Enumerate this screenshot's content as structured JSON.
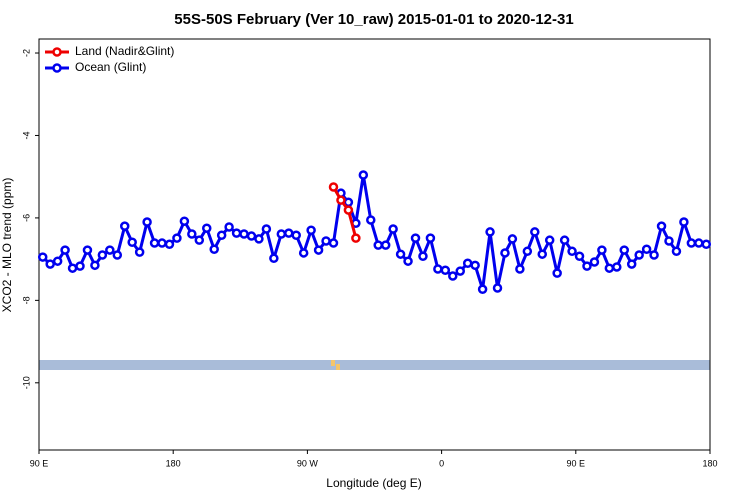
{
  "chart_data": {
    "type": "line",
    "title": "55S-50S February (Ver 10_raw)   2015-01-01 to 2020-12-31",
    "xlabel": "Longitude (deg E)",
    "ylabel": "XCO2 - MLO trend (ppm)",
    "xlim": [
      90,
      540
    ],
    "xticks": [
      {
        "value": 90,
        "label": "90 E"
      },
      {
        "value": 180,
        "label": "180"
      },
      {
        "value": 270,
        "label": "90 W"
      },
      {
        "value": 360,
        "label": "0"
      },
      {
        "value": 450,
        "label": "90 E"
      },
      {
        "value": 540,
        "label": "180"
      }
    ],
    "ylim": [
      -11.63,
      -1.66
    ],
    "yticks": [
      -2,
      -4,
      -6,
      -8,
      -10
    ],
    "legend": "upper left",
    "series": [
      {
        "name": "Land (Nadir&Glint)",
        "color": "#ee0000",
        "x": [
          287.5,
          292.5,
          297.5,
          302.5
        ],
        "values": [
          -5.25,
          -5.57,
          -5.81,
          -6.49
        ]
      },
      {
        "name": "Ocean (Glint)",
        "color": "#0000ee",
        "x": [
          92.5,
          97.5,
          102.5,
          107.5,
          112.5,
          117.5,
          122.5,
          127.5,
          132.5,
          137.5,
          142.5,
          147.5,
          152.5,
          157.5,
          162.5,
          167.5,
          172.5,
          177.5,
          182.5,
          187.5,
          192.5,
          197.5,
          202.5,
          207.5,
          212.5,
          217.5,
          222.5,
          227.5,
          232.5,
          237.5,
          242.5,
          247.5,
          252.5,
          257.5,
          262.5,
          267.5,
          272.5,
          277.5,
          282.5,
          287.5,
          292.5,
          297.5,
          302.5,
          307.5,
          312.5,
          317.5,
          322.5,
          327.5,
          332.5,
          337.5,
          342.5,
          347.5,
          352.5,
          357.5,
          362.5,
          367.5,
          372.5,
          377.5,
          382.5,
          387.5,
          392.5,
          397.5,
          402.5,
          407.5,
          412.5,
          417.5,
          422.5,
          427.5,
          432.5,
          437.5,
          442.5,
          447.5,
          452.5,
          457.5,
          462.5,
          467.5,
          472.5,
          477.5,
          482.5,
          487.5,
          492.5,
          497.5,
          502.5,
          507.5,
          512.5,
          517.5,
          522.5,
          527.5,
          532.5,
          537.5
        ],
        "values": [
          -6.95,
          -7.12,
          -7.05,
          -6.78,
          -7.22,
          -7.17,
          -6.78,
          -7.15,
          -6.9,
          -6.78,
          -6.9,
          -6.2,
          -6.59,
          -6.83,
          -6.1,
          -6.61,
          -6.61,
          -6.64,
          -6.49,
          -6.08,
          -6.39,
          -6.54,
          -6.25,
          -6.76,
          -6.42,
          -6.22,
          -6.37,
          -6.39,
          -6.44,
          -6.51,
          -6.27,
          -6.98,
          -6.39,
          -6.37,
          -6.42,
          -6.85,
          -6.3,
          -6.78,
          -6.56,
          -6.61,
          -5.4,
          -5.62,
          -6.13,
          -4.96,
          -6.05,
          -6.66,
          -6.66,
          -6.27,
          -6.88,
          -7.05,
          -6.49,
          -6.93,
          -6.49,
          -7.24,
          -7.27,
          -7.41,
          -7.29,
          -7.1,
          -7.15,
          -7.73,
          -6.34,
          -7.7,
          -6.85,
          -6.51,
          -7.24,
          -6.81,
          -6.34,
          -6.88,
          -6.54,
          -7.34,
          -6.54,
          -6.81,
          -6.93,
          -7.17,
          -7.07,
          -6.78,
          -7.22,
          -7.19,
          -6.78,
          -7.12,
          -6.9,
          -6.76,
          -6.9,
          -6.2,
          -6.56,
          -6.81,
          -6.1,
          -6.61,
          -6.61,
          -6.64
        ]
      }
    ]
  }
}
